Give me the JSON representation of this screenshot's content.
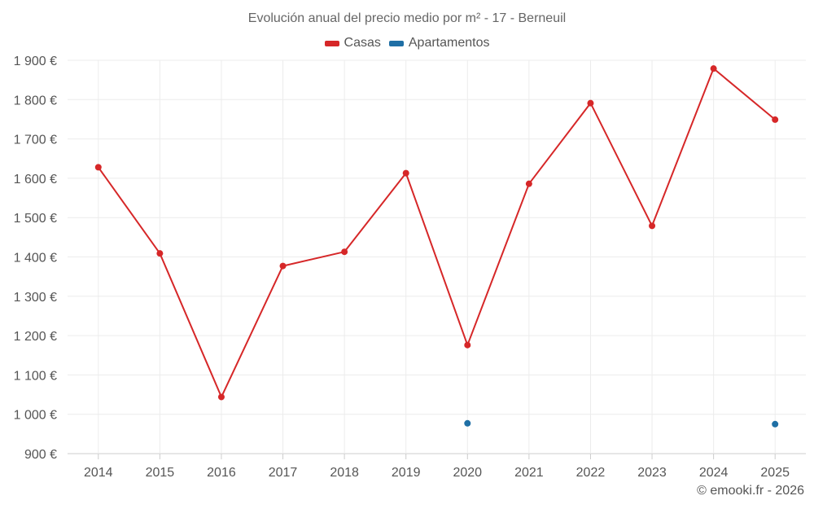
{
  "chart_data": {
    "type": "line",
    "title": "Evolución anual del precio medio por m² - 17 - Berneuil",
    "categories": [
      "2014",
      "2015",
      "2016",
      "2017",
      "2018",
      "2019",
      "2020",
      "2021",
      "2022",
      "2023",
      "2024",
      "2025"
    ],
    "series": [
      {
        "name": "Casas",
        "color": "#d62728",
        "style": "line+markers",
        "values": [
          1628,
          1409,
          1044,
          1377,
          1413,
          1613,
          1176,
          1586,
          1791,
          1479,
          1879,
          1749
        ]
      },
      {
        "name": "Apartamentos",
        "color": "#1f6fa5",
        "style": "markers",
        "values": [
          null,
          null,
          null,
          null,
          null,
          null,
          977,
          null,
          null,
          null,
          null,
          975
        ]
      }
    ],
    "ylim": [
      900,
      1900
    ],
    "yticks": [
      900,
      1000,
      1100,
      1200,
      1300,
      1400,
      1500,
      1600,
      1700,
      1800,
      1900
    ],
    "ytick_labels": [
      "900 €",
      "1 000 €",
      "1 100 €",
      "1 200 €",
      "1 300 €",
      "1 400 €",
      "1 500 €",
      "1 600 €",
      "1 700 €",
      "1 800 €",
      "1 900 €"
    ],
    "xlabel": "",
    "ylabel": "",
    "grid": true,
    "legend": "top-center"
  },
  "credit": "© emooki.fr - 2026"
}
